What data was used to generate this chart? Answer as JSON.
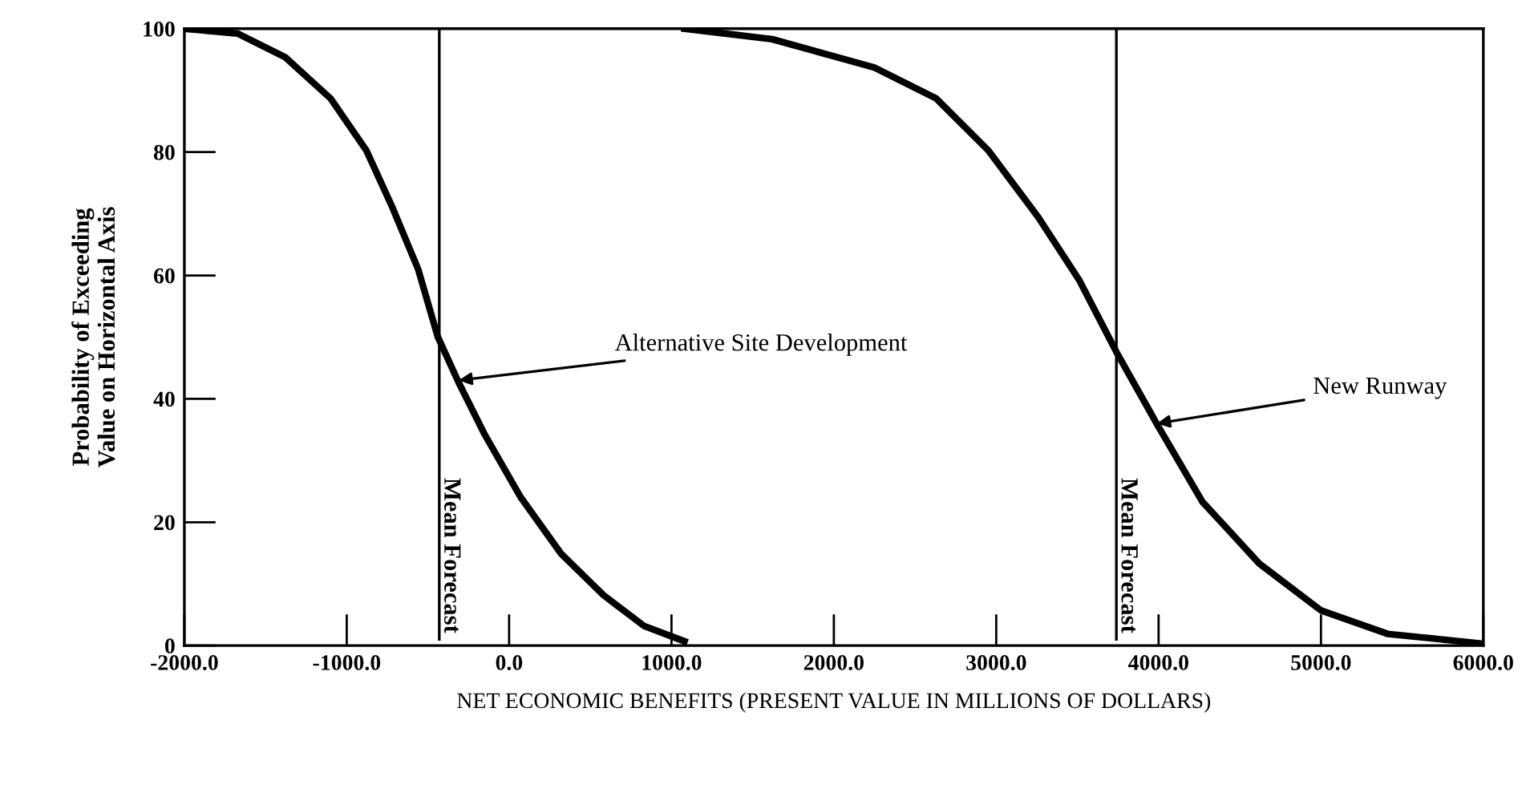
{
  "chart_data": {
    "type": "line",
    "xlabel": "NET ECONOMIC BENEFITS (PRESENT VALUE IN MILLIONS OF DOLLARS)",
    "ylabel": "Probability of Exceeding\nValue on Horizontal Axis",
    "xlim": [
      -2000,
      6000
    ],
    "ylim": [
      0,
      100
    ],
    "xticks": [
      {
        "value": -2000,
        "label": "-2000.0"
      },
      {
        "value": -1000,
        "label": "-1000.0"
      },
      {
        "value": 0,
        "label": "0.0"
      },
      {
        "value": 1000,
        "label": "1000.0"
      },
      {
        "value": 2000,
        "label": "2000.0"
      },
      {
        "value": 3000,
        "label": "3000.0"
      },
      {
        "value": 4000,
        "label": "4000.0"
      },
      {
        "value": 5000,
        "label": "5000.0"
      },
      {
        "value": 6000,
        "label": "6000.0"
      }
    ],
    "yticks": [
      0,
      20,
      40,
      60,
      80,
      100
    ],
    "grid": false,
    "legend": false,
    "marker": "none",
    "line_style": "solid",
    "series": [
      {
        "color": "#000000",
        "x": [
          -2000,
          -1670,
          -1380,
          -1100,
          -880,
          -720,
          -560,
          -440,
          -310,
          -150,
          70,
          320,
          580,
          830,
          1080
        ],
        "values": [
          100,
          99.2,
          95.4,
          88.7,
          80.3,
          71.1,
          61,
          50.1,
          42.6,
          34.2,
          24.1,
          14.9,
          8.2,
          3.2,
          0.7
        ]
      },
      {
        "color": "#000000",
        "x": [
          1080,
          1620,
          2250,
          2630,
          2950,
          3260,
          3510,
          3740,
          3990,
          4270,
          4620,
          5000,
          5410,
          6000
        ],
        "values": [
          100,
          98.3,
          93.7,
          88.7,
          80.3,
          69.4,
          59.3,
          47.6,
          35.9,
          23.3,
          13.3,
          5.7,
          1.9,
          0.3
        ]
      }
    ],
    "ref_lines": [
      {
        "axis": "x",
        "value": -430,
        "label": "Mean Forecast",
        "color": "#000000"
      },
      {
        "axis": "x",
        "value": 3740,
        "label": "Mean Forecast",
        "color": "#000000"
      }
    ],
    "annotations": [
      {
        "text": "Alternative Site Development",
        "x": -310,
        "y": 43
      },
      {
        "text": "New Runway",
        "x": 3990,
        "y": 36
      }
    ]
  }
}
